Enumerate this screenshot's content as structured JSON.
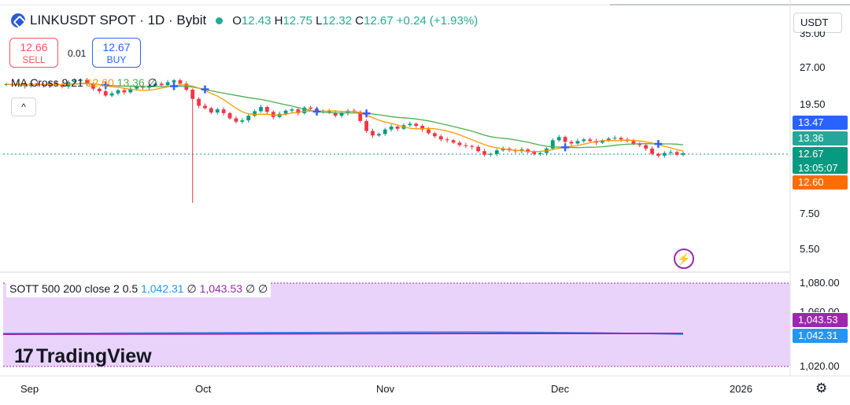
{
  "header": {
    "symbol_title": "LINKUSDT SPOT · 1D · Bybit",
    "o_label": "O",
    "o_value": "12.43",
    "h_label": "H",
    "h_value": "12.75",
    "l_label": "L",
    "l_value": "12.32",
    "c_label": "C",
    "c_value": "12.67",
    "change": "+0.24 (+1.93%)"
  },
  "trade": {
    "sell_price": "12.66",
    "sell_label": "SELL",
    "spread": "0.01",
    "buy_price": "12.67",
    "buy_label": "BUY"
  },
  "indicators": {
    "ma_legend": "MA Cross 9 21",
    "ma_fast_value": "12.60",
    "ma_slow_value": "13.36",
    "ma_tail": "∅",
    "collapse_icon": "^",
    "sott_name": "SOTT 500 200 close 2 0.5",
    "sott_v1": "1,042.31",
    "sott_v2": "1,043.53",
    "sott_tail1": "∅",
    "sott_tail2": "∅ ∅"
  },
  "currency": "USDT",
  "price_axis": {
    "top_tick_partial": "35.00",
    "ticks": [
      "27.00",
      "19.50",
      "7.50",
      "5.50"
    ],
    "badges": [
      {
        "text": "13.47",
        "color": "#2962ff"
      },
      {
        "text": "13.36",
        "color": "#26a69a"
      },
      {
        "text": "12.67",
        "color": "#089981"
      },
      {
        "text": "13:05:07",
        "color": "#089981"
      },
      {
        "text": "12.60",
        "color": "#ff6d00"
      }
    ]
  },
  "sott_axis": {
    "ticks": [
      "1,080.00",
      "1,060.00",
      "1,020.00"
    ],
    "badge_purple": "1,043.53",
    "badge_blue": "1,042.31"
  },
  "time_axis": {
    "labels": [
      "Sep",
      "Oct",
      "Nov",
      "Dec",
      "2026"
    ]
  },
  "brand": {
    "name": "TradingView",
    "mark": "17"
  },
  "colors": {
    "up": "#089981",
    "down": "#f23645",
    "ma_fast": "#ff9800",
    "ma_slow": "#4caf50",
    "sott_bg": "#ead3fb",
    "sott_line_purple": "#9c27b0",
    "sott_line_blue": "#2196f3"
  },
  "chart_data": {
    "type": "candlestick",
    "title": "LINKUSDT SPOT · 1D · Bybit",
    "scale": "log",
    "ylim": [
      5.0,
      35.0
    ],
    "x_labels": [
      "Sep",
      "Oct",
      "Nov",
      "Dec",
      "2026"
    ],
    "close_series_approx": [
      23.2,
      23.0,
      23.3,
      22.8,
      23.4,
      23.1,
      22.9,
      23.5,
      23.2,
      22.7,
      23.6,
      23.9,
      24.1,
      23.2,
      22.3,
      21.8,
      21.0,
      21.4,
      22.0,
      21.6,
      22.3,
      22.7,
      22.5,
      22.9,
      23.3,
      23.0,
      23.6,
      24.0,
      23.3,
      22.1,
      20.4,
      19.2,
      18.8,
      18.1,
      18.6,
      18.0,
      17.2,
      16.7,
      16.9,
      17.6,
      18.3,
      19.0,
      18.2,
      17.4,
      17.9,
      18.4,
      18.6,
      18.0,
      18.9,
      18.7,
      18.3,
      18.4,
      18.1,
      17.6,
      18.0,
      18.4,
      18.2,
      16.8,
      15.4,
      14.8,
      15.0,
      15.6,
      16.0,
      15.7,
      16.2,
      16.4,
      16.1,
      15.6,
      15.1,
      14.7,
      14.3,
      14.2,
      13.9,
      13.6,
      13.5,
      13.4,
      12.9,
      12.5,
      12.6,
      13.0,
      13.2,
      13.0,
      12.9,
      13.1,
      12.8,
      12.6,
      12.7,
      13.2,
      14.2,
      14.6,
      14.0,
      13.8,
      14.1,
      14.3,
      14.1,
      13.9,
      14.2,
      14.4,
      14.5,
      14.3,
      14.1,
      13.8,
      13.6,
      13.2,
      12.6,
      12.4,
      12.7,
      12.8,
      12.5,
      12.67
    ],
    "ma_fast": {
      "name": "MA 9",
      "last": 12.6
    },
    "ma_slow": {
      "name": "MA 21",
      "last": 13.36
    },
    "last_price": 12.67,
    "countdown": "13:05:07",
    "low_wick_min": 8.2,
    "sott": {
      "range": [
        1020,
        1080
      ],
      "series": [
        {
          "name": "1,043.53",
          "last": 1043.53
        },
        {
          "name": "1,042.31",
          "last": 1042.31
        }
      ]
    }
  }
}
